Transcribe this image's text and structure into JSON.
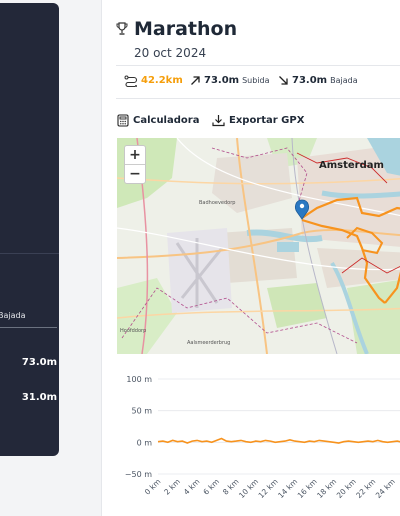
{
  "left_panel": {
    "column_header": "Bajada",
    "values": [
      "73.0m",
      "31.0m"
    ]
  },
  "activity": {
    "title": "Marathon",
    "date": "20 oct 2024",
    "distance": "42.2km",
    "ascent_value": "73.0m",
    "ascent_label": "Subida",
    "descent_value": "73.0m",
    "descent_label": "Bajada"
  },
  "actions": {
    "calculator": "Calculadora",
    "export_gpx": "Exportar GPX"
  },
  "map": {
    "zoom_in": "+",
    "zoom_out": "−",
    "city_label": "Amsterdam",
    "place_labels": [
      "Hoofddorp",
      "Aalsmeerderbrug",
      "Badhoevedorp"
    ]
  },
  "elevation_chart": {
    "y_ticks": [
      "100 m",
      "50 m",
      "0 m",
      "−50 m"
    ],
    "x_ticks": [
      "0 km",
      "2 km",
      "4 km",
      "6 km",
      "8 km",
      "10 km",
      "12 km",
      "14 km",
      "16 km",
      "18 km",
      "20 km",
      "22 km",
      "24 km"
    ]
  },
  "chart_data": {
    "type": "line",
    "xlabel": "",
    "ylabel": "",
    "ylim": [
      -50,
      100
    ],
    "xlim": [
      0,
      26
    ],
    "series": [
      {
        "color": "#f7931e",
        "x": [
          0,
          0.5,
          1,
          1.5,
          2,
          2.5,
          3,
          3.5,
          4,
          4.5,
          5,
          5.5,
          6,
          6.5,
          7,
          7.5,
          8,
          8.5,
          9,
          9.5,
          10,
          10.5,
          11,
          11.5,
          12,
          12.5,
          13,
          13.5,
          14,
          14.5,
          15,
          15.5,
          16,
          16.5,
          17,
          17.5,
          18,
          18.5,
          19,
          19.5,
          20,
          20.5,
          21,
          21.5,
          22,
          22.5,
          23,
          23.5,
          24,
          24.5,
          25,
          25.5,
          26
        ],
        "y": [
          1,
          2,
          0,
          3,
          1,
          2,
          -1,
          2,
          3,
          1,
          2,
          0,
          3,
          6,
          2,
          1,
          2,
          3,
          1,
          0,
          2,
          1,
          3,
          2,
          0,
          1,
          2,
          4,
          2,
          1,
          0,
          2,
          1,
          3,
          2,
          1,
          0,
          -1,
          1,
          2,
          1,
          0,
          1,
          2,
          1,
          3,
          1,
          0,
          1,
          2,
          0,
          1,
          2
        ]
      }
    ]
  }
}
